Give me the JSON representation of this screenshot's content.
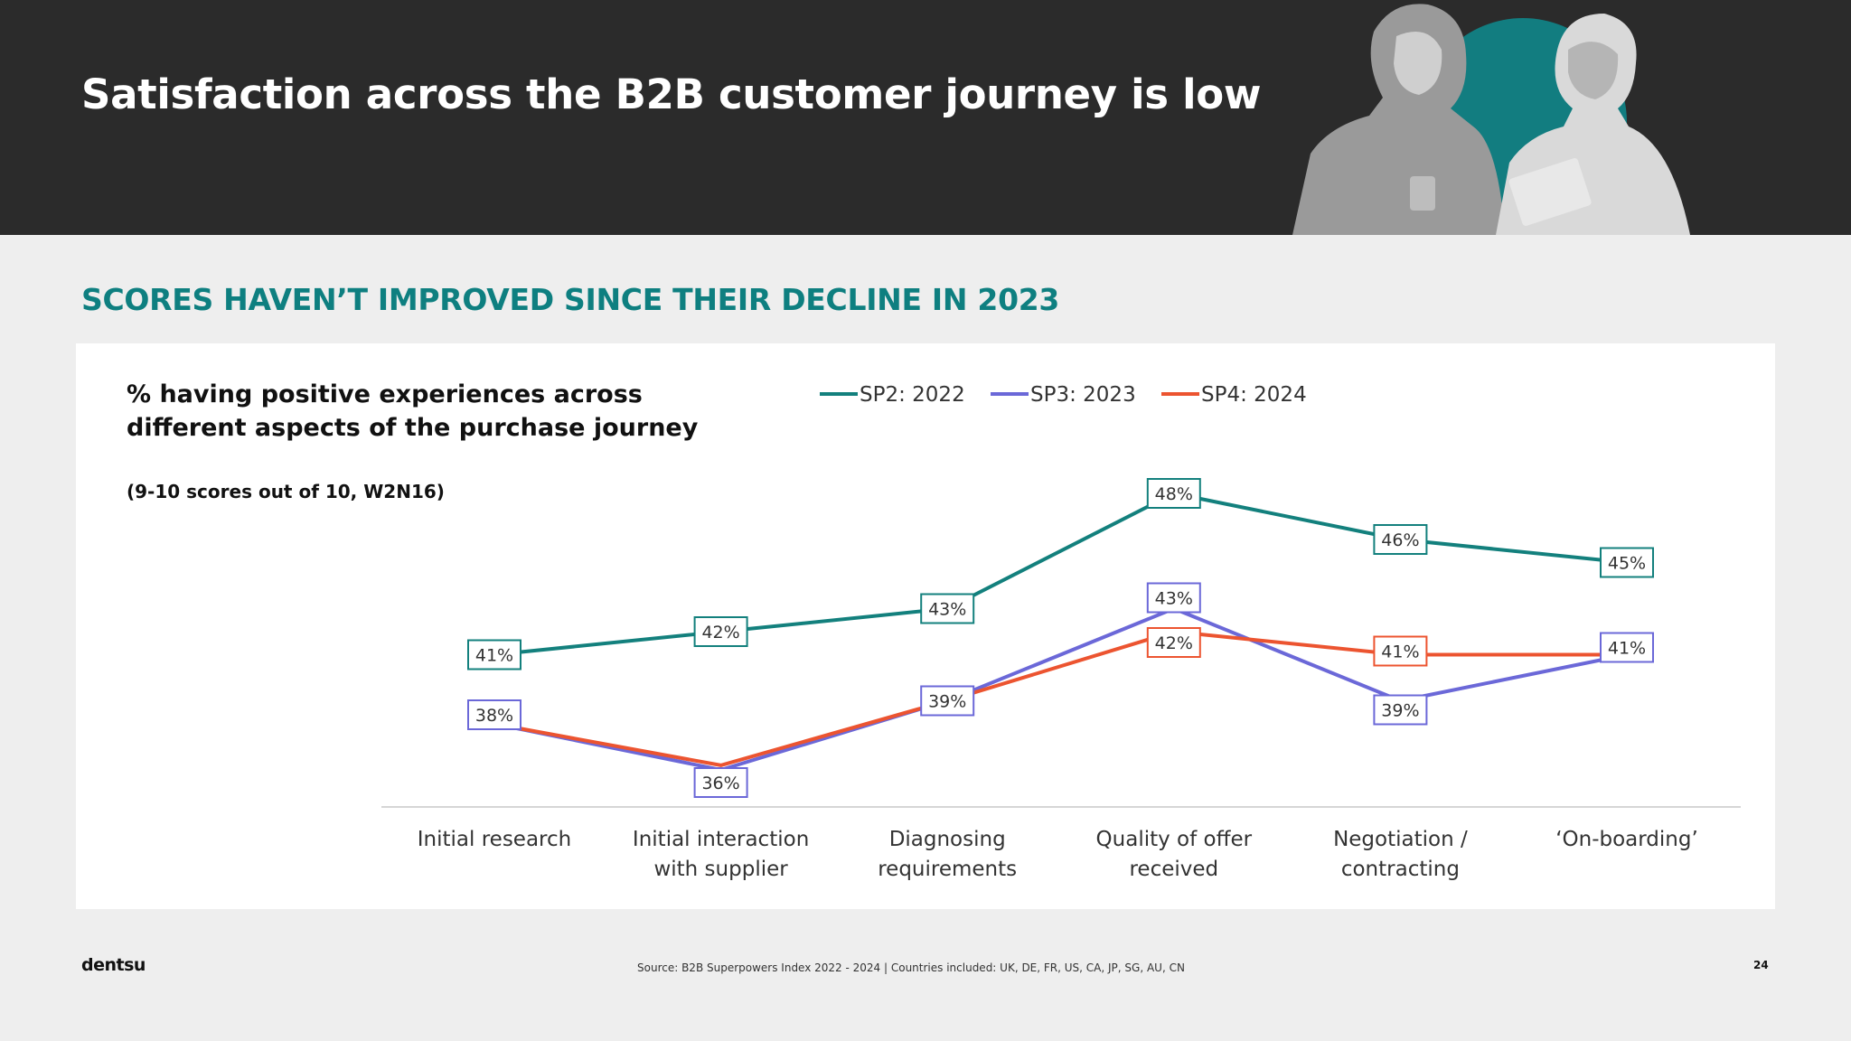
{
  "slide": {
    "title": "Satisfaction across the B2B customer journey is low",
    "subtitle": "SCORES HAVEN’T IMPROVED SINCE THEIR DECLINE IN 2023",
    "logo_text": "dentsu",
    "source": "Source: B2B Superpowers Index 2022 - 2024   |   Countries included: UK, DE, FR, US, CA, JP, SG, AU, CN",
    "page_number": "24"
  },
  "colors": {
    "header_bg": "#2b2b2b",
    "accent_teal": "#0e7f80",
    "sp2": "#13807d",
    "sp3": "#6b68d8",
    "sp4": "#ec5430"
  },
  "chart_data": {
    "type": "line",
    "title": "% having positive experiences across different aspects of the purchase journey",
    "note": "(9-10 scores out of 10, W2N16)",
    "categories": [
      [
        "Initial research"
      ],
      [
        "Initial interaction",
        "with supplier"
      ],
      [
        "Diagnosing",
        "requirements"
      ],
      [
        "Quality of offer",
        "received"
      ],
      [
        "Negotiation /",
        "contracting"
      ],
      [
        "‘On-boarding’"
      ]
    ],
    "series": [
      {
        "name": "SP2: 2022",
        "values": [
          41,
          42,
          43,
          48,
          46,
          45
        ]
      },
      {
        "name": "SP3: 2023",
        "values": [
          38,
          36,
          39,
          43,
          39,
          41
        ]
      },
      {
        "name": "SP4: 2024",
        "values": [
          38,
          36.2,
          39,
          42,
          41,
          41
        ]
      }
    ],
    "data_labels": [
      [
        "41%",
        "42%",
        "43%",
        "48%",
        "46%",
        "45%"
      ],
      [
        "38%",
        "36%",
        "39%",
        "43%",
        "39%",
        "41%"
      ],
      [
        null,
        null,
        null,
        "42%",
        "41%",
        null
      ]
    ],
    "legend_position": "top",
    "ylim": [
      33,
      50
    ],
    "grid": false
  }
}
